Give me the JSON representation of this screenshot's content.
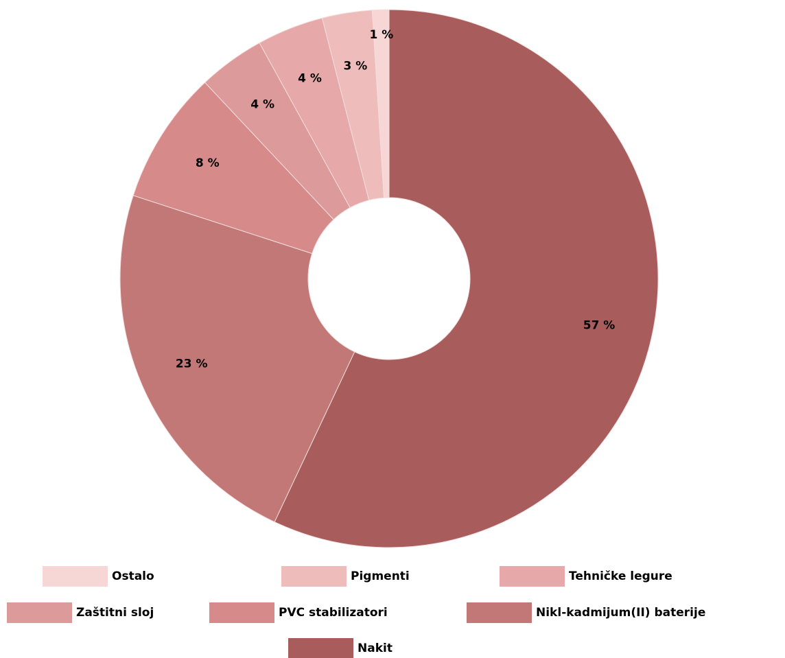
{
  "chart_data": {
    "type": "donut",
    "categories": [
      "Nakit",
      "Nikl-kadmijum(II) baterije",
      "PVC stabilizatori",
      "Zaštitni sloj",
      "Tehničke legure",
      "Pigmenti",
      "Ostalo"
    ],
    "values": [
      57,
      23,
      8,
      4,
      4,
      3,
      1
    ],
    "value_labels": [
      "57 %",
      "23 %",
      "8 %",
      "4 %",
      "4 %",
      "3 %",
      "1 %"
    ],
    "colors": [
      "#a95c5c",
      "#c27876",
      "#d78a8a",
      "#dc9a9a",
      "#e6a8a8",
      "#efbcbc",
      "#f7d6d6"
    ]
  }
}
